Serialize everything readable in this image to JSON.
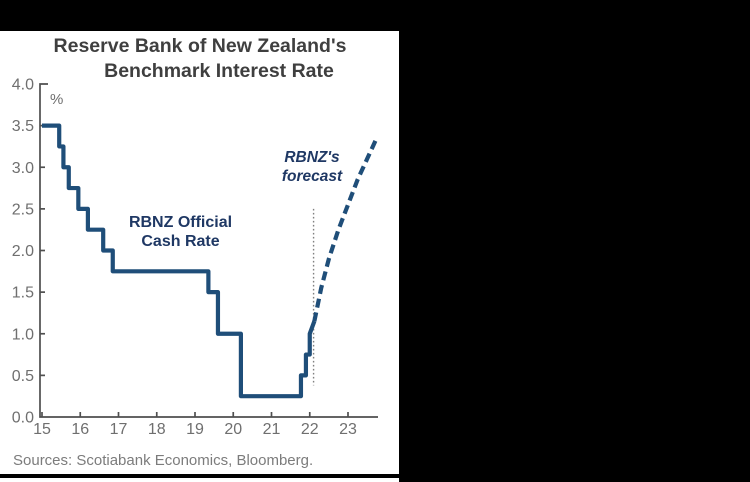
{
  "header": {
    "title_line1": "Reserve Bank of New Zealand's",
    "title_line2": "Benchmark Interest Rate"
  },
  "annotations": {
    "unit": "%",
    "series_label_line1": "RBNZ Official",
    "series_label_line2": "Cash Rate",
    "forecast_label_line1": "RBNZ's",
    "forecast_label_line2": "forecast"
  },
  "footer": {
    "source_note": "Sources: Scotiabank Economics, Bloomberg."
  },
  "colors": {
    "line": "#1F4E79",
    "annotation_text": "#1F3864",
    "axis": "#4f4f4f",
    "tick_label": "#6f6f6f",
    "title_text": "#3f3f3f",
    "source_text": "#7c7c7c",
    "event_line": "#808080",
    "frame": "#000000"
  },
  "chart_data": {
    "type": "line",
    "title": "Reserve Bank of New Zealand's Benchmark Interest Rate",
    "ylabel": "%",
    "xlabel": "",
    "xlim": [
      15,
      23.8
    ],
    "ylim": [
      0,
      4.0
    ],
    "grid": false,
    "x_tick_values": [
      15,
      16,
      17,
      18,
      19,
      20,
      21,
      22,
      23
    ],
    "x_tick_labels": [
      "15",
      "16",
      "17",
      "18",
      "19",
      "20",
      "21",
      "22",
      "23"
    ],
    "y_tick_values": [
      0,
      0.5,
      1.0,
      1.5,
      2.0,
      2.5,
      3.0,
      3.5,
      4.0
    ],
    "y_tick_labels": [
      "0.0",
      "0.5",
      "1.0",
      "1.5",
      "2.0",
      "2.5",
      "3.0",
      "3.5",
      "4.0"
    ],
    "series": [
      {
        "name": "RBNZ Official Cash Rate",
        "style": "solid",
        "interpolation": "step-after",
        "points": [
          {
            "t": 15.0,
            "v": 3.5
          },
          {
            "t": 15.45,
            "v": 3.25
          },
          {
            "t": 15.56,
            "v": 3.0
          },
          {
            "t": 15.7,
            "v": 2.75
          },
          {
            "t": 15.95,
            "v": 2.5
          },
          {
            "t": 16.2,
            "v": 2.25
          },
          {
            "t": 16.6,
            "v": 2.0
          },
          {
            "t": 16.85,
            "v": 1.75
          },
          {
            "t": 19.35,
            "v": 1.5
          },
          {
            "t": 19.6,
            "v": 1.0
          },
          {
            "t": 20.2,
            "v": 0.25
          },
          {
            "t": 21.77,
            "v": 0.5
          },
          {
            "t": 21.9,
            "v": 0.75
          },
          {
            "t": 22.0,
            "v": 1.0
          },
          {
            "t": 22.12,
            "v": 1.15,
            "slant": true
          }
        ]
      },
      {
        "name": "RBNZ's forecast",
        "style": "dashed",
        "interpolation": "linear",
        "points": [
          {
            "t": 22.12,
            "v": 1.15
          },
          {
            "t": 22.3,
            "v": 1.55
          },
          {
            "t": 22.5,
            "v": 1.9
          },
          {
            "t": 22.75,
            "v": 2.25
          },
          {
            "t": 23.0,
            "v": 2.55
          },
          {
            "t": 23.25,
            "v": 2.85
          },
          {
            "t": 23.5,
            "v": 3.1
          },
          {
            "t": 23.75,
            "v": 3.35
          }
        ]
      }
    ],
    "event_line": {
      "t": 22.1,
      "v_from": 0.38,
      "v_to": 2.5,
      "style": "dotted"
    }
  }
}
